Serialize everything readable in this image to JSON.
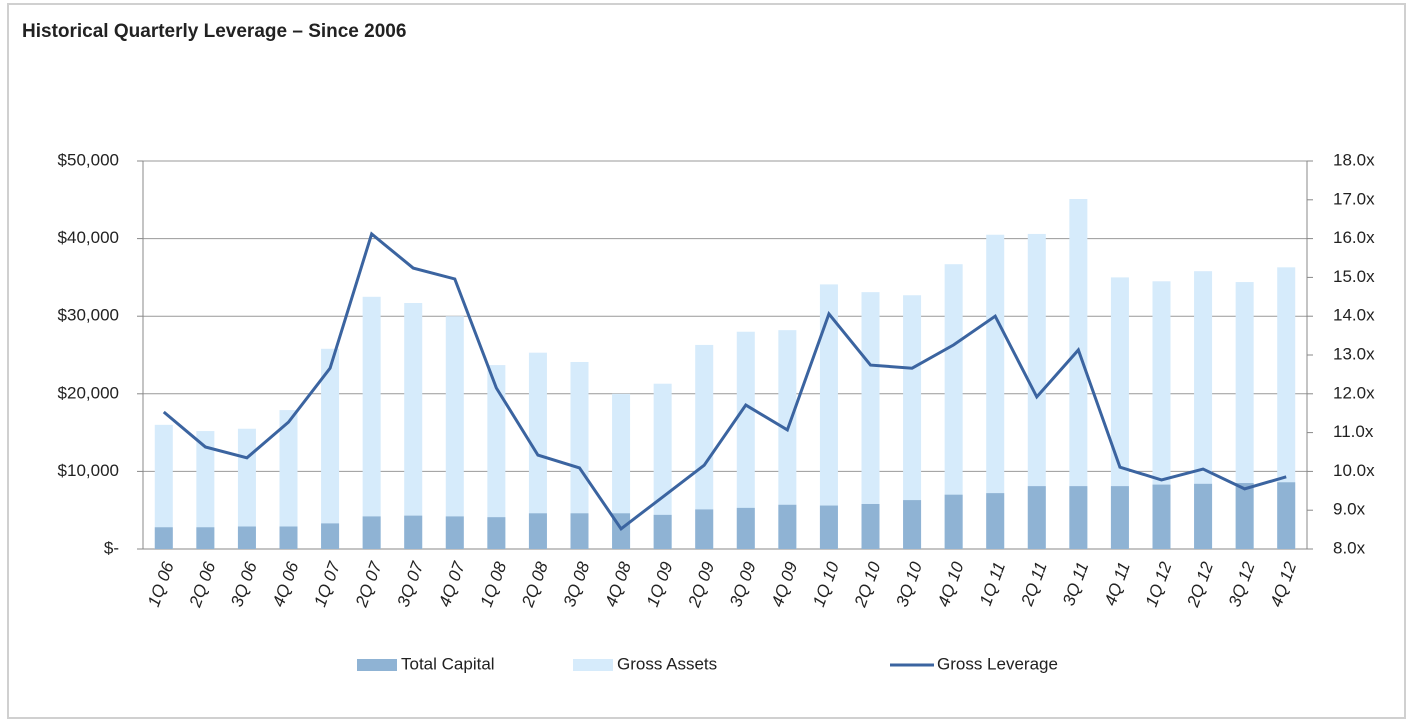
{
  "chart_data": {
    "type": "bar_line",
    "title": "Historical Quarterly Leverage – Since 2006",
    "categories": [
      "1Q 06",
      "2Q 06",
      "3Q 06",
      "4Q 06",
      "1Q 07",
      "2Q 07",
      "3Q 07",
      "4Q 07",
      "1Q 08",
      "2Q 08",
      "3Q 08",
      "4Q 08",
      "1Q 09",
      "2Q 09",
      "3Q 09",
      "4Q 09",
      "1Q 10",
      "2Q 10",
      "3Q 10",
      "4Q 10",
      "1Q 11",
      "2Q 11",
      "3Q 11",
      "4Q 11",
      "1Q 12",
      "2Q 12",
      "3Q 12",
      "4Q 12"
    ],
    "series": [
      {
        "name": "Total Capital",
        "type": "bar",
        "color": "#8fb3d4",
        "values": [
          2800,
          2800,
          2900,
          2900,
          3300,
          4200,
          4300,
          4200,
          4100,
          4600,
          4600,
          4600,
          4400,
          5100,
          5300,
          5700,
          5600,
          5800,
          6300,
          7000,
          7200,
          8100,
          8100,
          8100,
          8300,
          8400,
          8500,
          8600
        ]
      },
      {
        "name": "Gross Assets",
        "type": "bar",
        "color": "#d6ebfb",
        "values": [
          16000,
          15200,
          15500,
          17900,
          25800,
          32500,
          31700,
          30000,
          23700,
          25300,
          24100,
          20000,
          21300,
          26300,
          28000,
          28200,
          34100,
          33100,
          32700,
          36700,
          40500,
          40600,
          45100,
          35000,
          34500,
          35800,
          34400,
          36300
        ]
      },
      {
        "name": "Gross Leverage",
        "type": "line",
        "axis": "y2",
        "color": "#3b64a0",
        "values": [
          11.53,
          10.63,
          10.35,
          11.27,
          12.66,
          16.12,
          15.24,
          14.96,
          12.15,
          10.42,
          10.09,
          8.52,
          9.34,
          10.16,
          11.71,
          11.07,
          14.06,
          12.74,
          12.66,
          13.26,
          14.0,
          11.92,
          13.13,
          10.11,
          9.78,
          10.06,
          9.55,
          9.86
        ]
      }
    ],
    "ylim": [
      0,
      50000
    ],
    "yticks": [
      {
        "value": 0,
        "label": "$-"
      },
      {
        "value": 10000,
        "label": "$10,000"
      },
      {
        "value": 20000,
        "label": "$20,000"
      },
      {
        "value": 30000,
        "label": "$30,000"
      },
      {
        "value": 40000,
        "label": "$40,000"
      },
      {
        "value": 50000,
        "label": "$50,000"
      }
    ],
    "y2lim": [
      8,
      18
    ],
    "y2ticks": [
      {
        "value": 8,
        "label": "8.0x"
      },
      {
        "value": 9,
        "label": "9.0x"
      },
      {
        "value": 10,
        "label": "10.0x"
      },
      {
        "value": 11,
        "label": "11.0x"
      },
      {
        "value": 12,
        "label": "12.0x"
      },
      {
        "value": 13,
        "label": "13.0x"
      },
      {
        "value": 14,
        "label": "14.0x"
      },
      {
        "value": 15,
        "label": "15.0x"
      },
      {
        "value": 16,
        "label": "16.0x"
      },
      {
        "value": 17,
        "label": "17.0x"
      },
      {
        "value": 18,
        "label": "18.0x"
      }
    ],
    "grid": true,
    "legend": "bottom"
  }
}
